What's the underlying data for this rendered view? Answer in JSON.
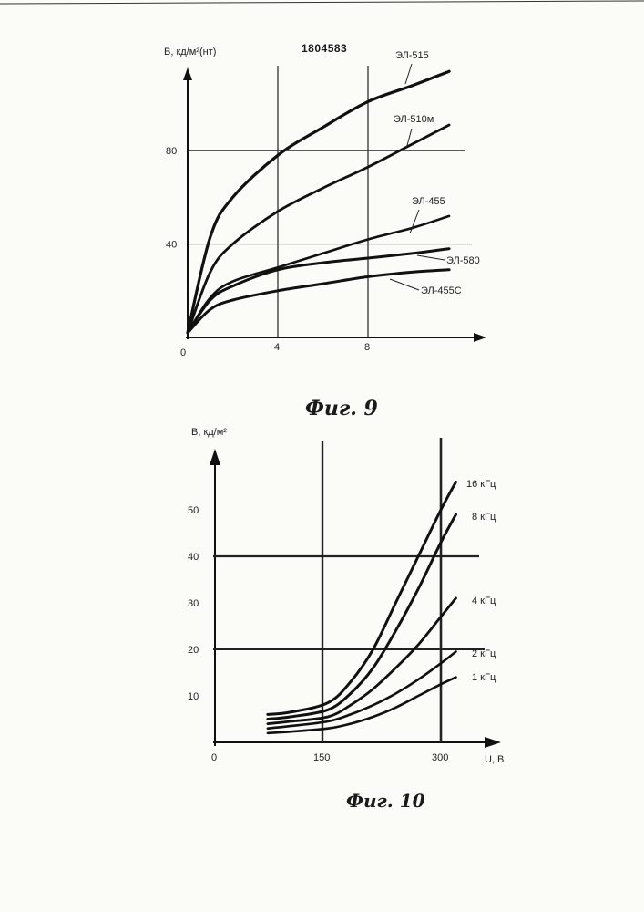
{
  "document_number": "1804583",
  "chart_data": [
    {
      "type": "line",
      "caption": "Фиг. 9",
      "ylabel": "B, кд/м²(нт)",
      "xlabel": "",
      "x_ticks": [
        "0",
        "4",
        "8"
      ],
      "y_ticks": [
        "40",
        "80"
      ],
      "xlim": [
        0,
        12
      ],
      "ylim": [
        0,
        120
      ],
      "grid": true,
      "series": [
        {
          "name": "ЭЛ-515",
          "x": [
            0,
            1,
            2,
            4,
            6,
            8,
            10,
            11.6
          ],
          "y": [
            2,
            43,
            60,
            78,
            90,
            101,
            108,
            114
          ]
        },
        {
          "name": "ЭЛ-510м",
          "x": [
            0,
            1,
            2,
            4,
            6,
            8,
            10,
            11.6
          ],
          "y": [
            2,
            28,
            40,
            54,
            64,
            73,
            83,
            91
          ]
        },
        {
          "name": "ЭЛ-455",
          "x": [
            0,
            1,
            2,
            4,
            6,
            8,
            10,
            11.6
          ],
          "y": [
            2,
            17,
            24,
            30,
            36,
            42,
            47,
            52
          ]
        },
        {
          "name": "ЭЛ-580",
          "x": [
            0,
            1,
            2,
            4,
            6,
            8,
            10,
            11.6
          ],
          "y": [
            2,
            16,
            22,
            29,
            32,
            34,
            36,
            38
          ]
        },
        {
          "name": "ЭЛ-455С",
          "x": [
            0,
            1,
            2,
            4,
            6,
            8,
            10,
            11.6
          ],
          "y": [
            2,
            12,
            16,
            20,
            23,
            26,
            28,
            29
          ]
        }
      ]
    },
    {
      "type": "line",
      "caption": "Фиг. 10",
      "ylabel": "B, кд/м²",
      "xlabel": "U, В",
      "x_ticks": [
        "0",
        "150",
        "300"
      ],
      "y_ticks": [
        "10",
        "20",
        "30",
        "40",
        "50"
      ],
      "xlim": [
        0,
        310
      ],
      "ylim": [
        0,
        60
      ],
      "grid": true,
      "series": [
        {
          "name": "16 кГц",
          "x": [
            70,
            100,
            150,
            180,
            210,
            240,
            270,
            300,
            320
          ],
          "y": [
            6,
            6.5,
            8.5,
            13,
            20,
            30,
            40,
            50,
            56
          ]
        },
        {
          "name": "8 кГц",
          "x": [
            70,
            100,
            150,
            180,
            210,
            240,
            270,
            300,
            320
          ],
          "y": [
            5,
            5.5,
            7,
            10.5,
            16,
            24,
            33,
            43,
            49
          ]
        },
        {
          "name": "4 кГц",
          "x": [
            70,
            100,
            150,
            180,
            210,
            240,
            270,
            300,
            320
          ],
          "y": [
            4,
            4.5,
            5.5,
            8,
            11.5,
            16,
            21,
            27,
            31
          ]
        },
        {
          "name": "2 кГц",
          "x": [
            70,
            100,
            150,
            180,
            210,
            240,
            270,
            300,
            320
          ],
          "y": [
            3,
            3.5,
            4.5,
            6,
            8,
            10.5,
            13.5,
            17,
            19.5
          ]
        },
        {
          "name": "1 кГц",
          "x": [
            70,
            100,
            150,
            180,
            210,
            240,
            270,
            300,
            320
          ],
          "y": [
            2,
            2.3,
            3,
            4,
            5.5,
            7.5,
            10,
            12.5,
            14
          ]
        }
      ]
    }
  ]
}
